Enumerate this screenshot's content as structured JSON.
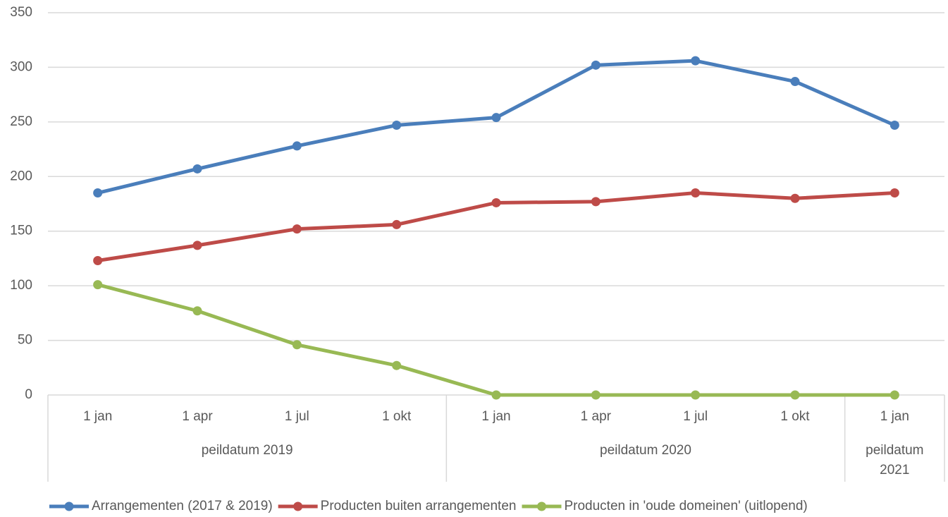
{
  "chart_data": {
    "type": "line",
    "groups": [
      {
        "label": "peildatum 2019",
        "categories": [
          "1 jan",
          "1 apr",
          "1 jul",
          "1 okt"
        ]
      },
      {
        "label": "peildatum 2020",
        "categories": [
          "1 jan",
          "1 apr",
          "1 jul",
          "1 okt"
        ]
      },
      {
        "label": "peildatum 2021",
        "categories": [
          "1 jan"
        ]
      }
    ],
    "series": [
      {
        "name": "Arrangementen (2017 & 2019)",
        "color": "#4a7ebb",
        "values": [
          185,
          207,
          228,
          247,
          254,
          302,
          306,
          287,
          247
        ]
      },
      {
        "name": "Producten buiten arrangementen",
        "color": "#be4b48",
        "values": [
          123,
          137,
          152,
          156,
          176,
          177,
          185,
          180,
          185
        ]
      },
      {
        "name": "Producten in 'oude domeinen' (uitlopend)",
        "color": "#98b954",
        "values": [
          101,
          77,
          46,
          27,
          0,
          0,
          0,
          0,
          0
        ]
      }
    ],
    "ylim": [
      0,
      350
    ],
    "yticks": [
      0,
      50,
      100,
      150,
      200,
      250,
      300,
      350
    ],
    "grid": true,
    "legend": "bottom"
  }
}
